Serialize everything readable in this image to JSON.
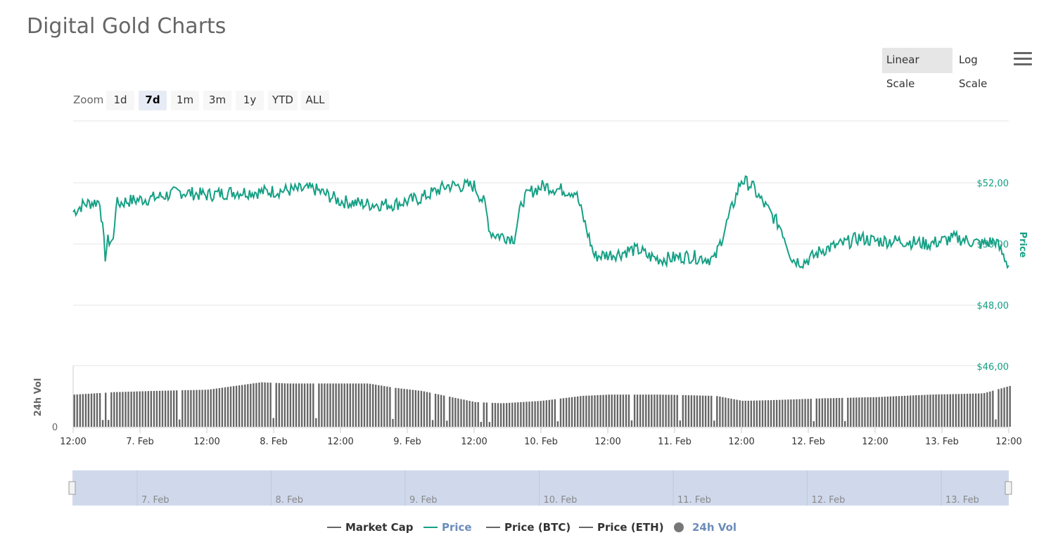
{
  "page": {
    "title": "Digital Gold Charts"
  },
  "scale_buttons": {
    "linear": "Linear Scale",
    "log": "Log Scale"
  },
  "zoom": {
    "label": "Zoom",
    "buttons": [
      "1d",
      "7d",
      "1m",
      "3m",
      "1y",
      "YTD",
      "ALL"
    ],
    "active": "7d"
  },
  "legend": {
    "items": [
      {
        "label": "Market Cap",
        "color": "#666666",
        "symbol": "line"
      },
      {
        "label": "Price",
        "color": "#16a085",
        "symbol": "line"
      },
      {
        "label": "Price (BTC)",
        "color": "#666666",
        "symbol": "line"
      },
      {
        "label": "Price (ETH)",
        "color": "#666666",
        "symbol": "line"
      },
      {
        "label": "24h Vol",
        "color": "#6b8cba",
        "symbol": "circle"
      }
    ]
  },
  "colors": {
    "price": "#16a085",
    "volume": "#666666",
    "navigator_fill": "#d0d9ec",
    "grid": "#e6e6e6"
  },
  "chart_data": {
    "type": "line",
    "y_axis": {
      "title": "Price",
      "ticks": [
        "$52,00",
        "$50,00",
        "$48,00",
        "$46,00"
      ],
      "range": [
        46,
        54
      ]
    },
    "volume_axis": {
      "title": "24h Vol",
      "ticks": [
        "0"
      ]
    },
    "x_axis": {
      "ticks": [
        "12:00",
        "7. Feb",
        "12:00",
        "8. Feb",
        "12:00",
        "9. Feb",
        "12:00",
        "10. Feb",
        "12:00",
        "11. Feb",
        "12:00",
        "12. Feb",
        "12:00",
        "13. Feb",
        "12:00"
      ]
    },
    "navigator_ticks": [
      "7. Feb",
      "8. Feb",
      "9. Feb",
      "10. Feb",
      "11. Feb",
      "12. Feb",
      "13. Feb"
    ],
    "x_range_days": [
      0,
      7
    ],
    "series": [
      {
        "name": "Price",
        "x_days": [
          0,
          0.08,
          0.2,
          0.24,
          0.26,
          0.3,
          0.32,
          0.4,
          0.6,
          0.8,
          1.0,
          1.2,
          1.4,
          1.6,
          1.8,
          2.0,
          2.2,
          2.4,
          2.6,
          2.8,
          3.0,
          3.08,
          3.12,
          3.16,
          3.3,
          3.36,
          3.42,
          3.52,
          3.62,
          3.76,
          3.82,
          3.9,
          4.1,
          4.16,
          4.24,
          4.3,
          4.4,
          4.6,
          4.8,
          5.0,
          5.08,
          5.12,
          5.3,
          5.38,
          5.46,
          5.54,
          5.6,
          5.76,
          5.88,
          6.0,
          6.2,
          6.4,
          6.6,
          6.8,
          6.9,
          7.0
        ],
        "values": [
          51.05,
          51.3,
          51.4,
          49.6,
          50.1,
          50.1,
          51.3,
          51.4,
          51.5,
          51.7,
          51.6,
          51.7,
          51.7,
          51.75,
          51.8,
          51.4,
          51.3,
          51.3,
          51.5,
          51.9,
          51.9,
          51.3,
          50.4,
          50.3,
          50.2,
          51.4,
          51.7,
          51.9,
          51.8,
          51.7,
          50.8,
          49.6,
          49.7,
          49.8,
          49.8,
          49.6,
          49.5,
          49.6,
          49.5,
          52.1,
          51.9,
          51.6,
          50.5,
          49.5,
          49.4,
          49.6,
          49.8,
          50.0,
          50.2,
          50.1,
          50.1,
          50.0,
          50.2,
          50.0,
          50.1,
          49.3
        ]
      },
      {
        "name": "24h Vol",
        "x_days": [
          0,
          0.3,
          0.6,
          1.0,
          1.2,
          1.4,
          1.6,
          2.0,
          2.2,
          2.4,
          2.6,
          3.0,
          3.2,
          3.5,
          3.8,
          4.0,
          4.4,
          4.8,
          5.0,
          5.2,
          5.6,
          6.0,
          6.4,
          6.8,
          7.0
        ],
        "values": [
          0.52,
          0.56,
          0.58,
          0.6,
          0.66,
          0.72,
          0.7,
          0.7,
          0.7,
          0.63,
          0.58,
          0.4,
          0.38,
          0.42,
          0.5,
          0.52,
          0.52,
          0.5,
          0.42,
          0.43,
          0.46,
          0.48,
          0.52,
          0.54,
          0.66
        ],
        "unit": "relative (no value ticks shown)"
      }
    ],
    "legend": "bottom-center",
    "grid": true
  }
}
